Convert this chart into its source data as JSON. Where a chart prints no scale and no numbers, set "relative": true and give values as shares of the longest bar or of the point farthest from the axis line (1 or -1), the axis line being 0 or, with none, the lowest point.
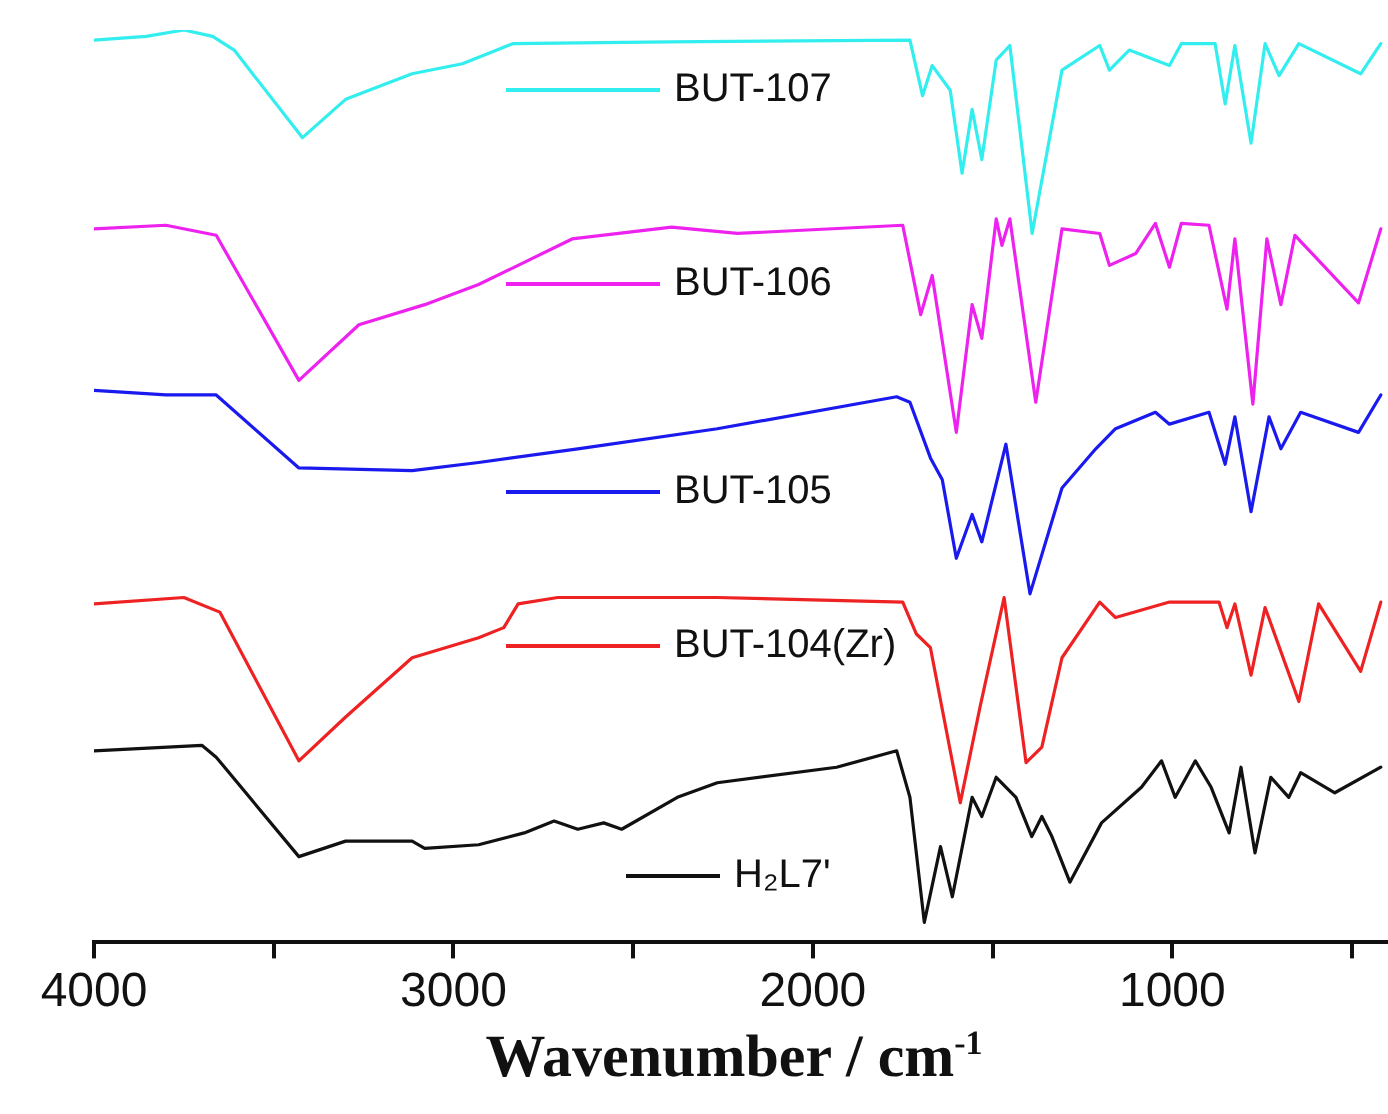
{
  "chart_data": {
    "type": "line",
    "relative": true,
    "xlabel": "Wavenumber / cm$^{-1}$",
    "xlim": [
      4000,
      400
    ],
    "xticks": [
      4000,
      {
        "value": 3500,
        "label": null
      },
      3000,
      {
        "value": 2500,
        "label": null
      },
      2000,
      {
        "value": 1500,
        "label": null
      },
      1000,
      {
        "value": 500,
        "label": null
      }
    ],
    "grid": false,
    "legend": "center",
    "marker": "none",
    "line_style": "solid",
    "series": [
      {
        "name": "BUT-107",
        "color": "#33eeee",
        "x": [
          4000,
          3855,
          3750,
          3670,
          3610,
          3420,
          3300,
          3115,
          2975,
          2835,
          2400,
          1730,
          1695,
          1668,
          1618,
          1585,
          1557,
          1530,
          1490,
          1452,
          1390,
          1307,
          1202,
          1175,
          1120,
          1008,
          975,
          881,
          853,
          826,
          781,
          742,
          703,
          648,
          476,
          420
        ],
        "values": [
          0.989,
          0.993,
          1,
          0.993,
          0.978,
          0.882,
          0.924,
          0.952,
          0.963,
          0.985,
          0.987,
          0.989,
          0.928,
          0.961,
          0.934,
          0.843,
          0.913,
          0.858,
          0.967,
          0.983,
          0.777,
          0.956,
          0.983,
          0.956,
          0.978,
          0.961,
          0.985,
          0.985,
          0.919,
          0.983,
          0.876,
          0.985,
          0.95,
          0.985,
          0.952,
          0.985
        ]
      },
      {
        "name": "BUT-106",
        "color": "#ee22ee",
        "x": [
          4000,
          3800,
          3660,
          3430,
          3263,
          3080,
          2930,
          2820,
          2670,
          2393,
          2210,
          1750,
          1700,
          1668,
          1601,
          1557,
          1530,
          1490,
          1474,
          1452,
          1380,
          1307,
          1202,
          1175,
          1102,
          1047,
          1008,
          975,
          898,
          848,
          826,
          776,
          737,
          698,
          659,
          482,
          420
        ],
        "values": [
          0.782,
          0.786,
          0.775,
          0.616,
          0.677,
          0.699,
          0.721,
          0.742,
          0.771,
          0.784,
          0.777,
          0.786,
          0.688,
          0.731,
          0.559,
          0.699,
          0.662,
          0.793,
          0.764,
          0.793,
          0.592,
          0.782,
          0.777,
          0.742,
          0.755,
          0.788,
          0.74,
          0.788,
          0.786,
          0.694,
          0.771,
          0.59,
          0.771,
          0.699,
          0.775,
          0.701,
          0.782
        ]
      },
      {
        "name": "BUT-105",
        "color": "#1a1aee",
        "x": [
          4000,
          3800,
          3660,
          3430,
          3115,
          2930,
          2654,
          2266,
          1767,
          1730,
          1673,
          1640,
          1601,
          1557,
          1530,
          1463,
          1396,
          1307,
          1213,
          1158,
          1047,
          1008,
          898,
          853,
          826,
          781,
          731,
          698,
          643,
          482,
          420
        ],
        "values": [
          0.605,
          0.6,
          0.6,
          0.52,
          0.517,
          0.526,
          0.541,
          0.563,
          0.598,
          0.592,
          0.531,
          0.507,
          0.421,
          0.469,
          0.439,
          0.546,
          0.382,
          0.498,
          0.541,
          0.563,
          0.581,
          0.568,
          0.581,
          0.524,
          0.576,
          0.472,
          0.576,
          0.541,
          0.581,
          0.559,
          0.6
        ]
      },
      {
        "name": "BUT-104(Zr)",
        "color": "#ee2222",
        "x": [
          4000,
          3750,
          3650,
          3430,
          3300,
          3115,
          2930,
          2860,
          2820,
          2710,
          2266,
          1750,
          1712,
          1673,
          1590,
          1535,
          1468,
          1407,
          1363,
          1307,
          1202,
          1158,
          1008,
          870,
          848,
          826,
          781,
          742,
          648,
          593,
          476,
          420
        ],
        "values": [
          0.371,
          0.378,
          0.362,
          0.199,
          0.247,
          0.312,
          0.334,
          0.345,
          0.371,
          0.378,
          0.378,
          0.373,
          0.338,
          0.323,
          0.153,
          0.258,
          0.378,
          0.197,
          0.214,
          0.312,
          0.373,
          0.356,
          0.373,
          0.373,
          0.345,
          0.371,
          0.293,
          0.367,
          0.264,
          0.371,
          0.297,
          0.373
        ]
      },
      {
        "name": "H₂L7'",
        "color": "#111111",
        "x": [
          4000,
          3700,
          3660,
          3430,
          3300,
          3115,
          3080,
          2930,
          2803,
          2720,
          2654,
          2582,
          2532,
          2377,
          2266,
          1934,
          1767,
          1730,
          1690,
          1645,
          1612,
          1557,
          1530,
          1490,
          1435,
          1391,
          1363,
          1335,
          1285,
          1197,
          1086,
          1030,
          992,
          936,
          892,
          842,
          809,
          770,
          726,
          676,
          643,
          548,
          420
        ],
        "values": [
          0.21,
          0.216,
          0.203,
          0.094,
          0.111,
          0.111,
          0.103,
          0.107,
          0.12,
          0.133,
          0.124,
          0.131,
          0.124,
          0.159,
          0.175,
          0.192,
          0.21,
          0.159,
          0.022,
          0.105,
          0.05,
          0.159,
          0.138,
          0.181,
          0.159,
          0.116,
          0.138,
          0.116,
          0.066,
          0.131,
          0.17,
          0.199,
          0.159,
          0.199,
          0.17,
          0.12,
          0.192,
          0.098,
          0.181,
          0.159,
          0.186,
          0.164,
          0.192
        ]
      }
    ]
  }
}
